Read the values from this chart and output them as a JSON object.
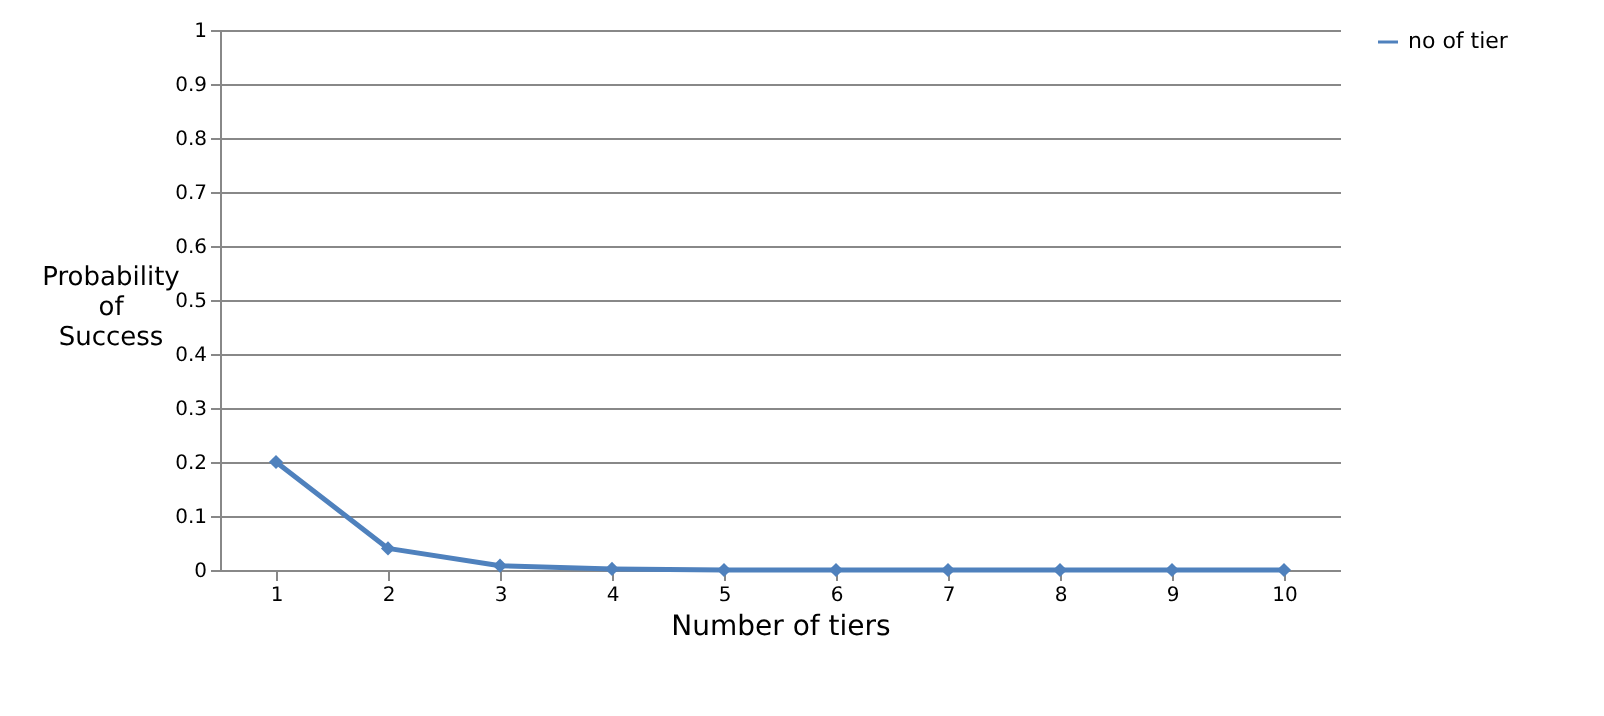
{
  "chart_data": {
    "type": "line",
    "xlabel": "Number of tiers",
    "ylabel": "Probability of Success",
    "categories": [
      "1",
      "2",
      "3",
      "4",
      "5",
      "6",
      "7",
      "8",
      "9",
      "10"
    ],
    "series": [
      {
        "name": "no of tier",
        "color": "#4f81bd",
        "values": [
          0.2,
          0.04,
          0.008,
          0.002,
          0,
          0,
          0,
          0,
          0,
          0
        ]
      }
    ],
    "ylim": [
      0,
      1
    ],
    "yticks": [
      0,
      0.1,
      0.2,
      0.3,
      0.4,
      0.5,
      0.6,
      0.7,
      0.8,
      0.9,
      1
    ],
    "grid": "y",
    "legend": "right",
    "marker": "diamond",
    "line_style": "solid"
  }
}
